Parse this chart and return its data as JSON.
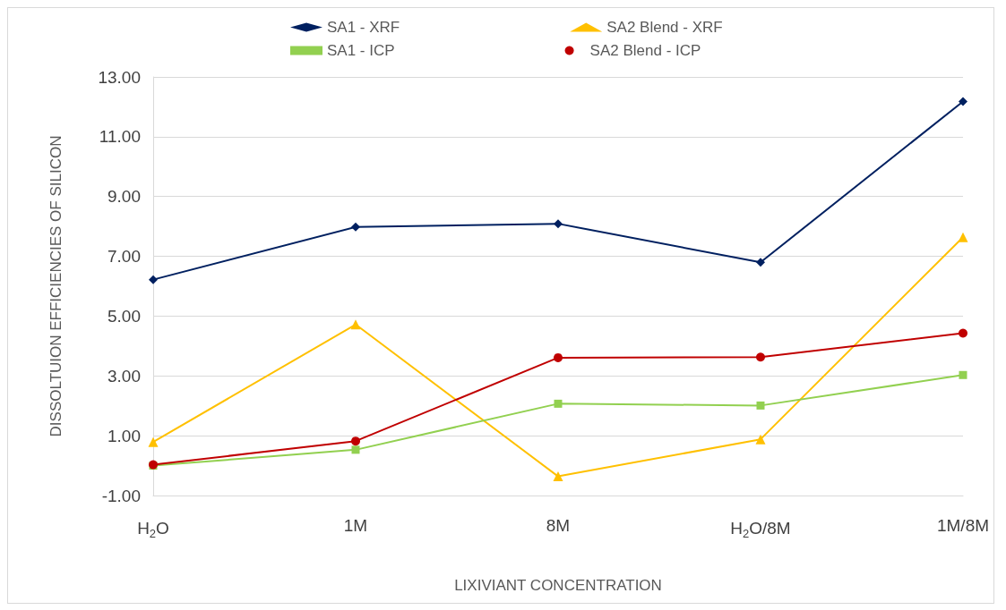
{
  "chart_data": {
    "type": "line",
    "xlabel": "LIXIVIANT CONCENTRATION",
    "ylabel": "DISSOLTUION EFFICIENCIES OF SILICON",
    "categories": [
      "H$_{2}$O",
      "1M",
      "8M",
      "H$_{2}$O/8M",
      "1M/8M"
    ],
    "series": [
      {
        "name": "SA1 - XRF",
        "color": "#002060",
        "marker": "diamond",
        "values": [
          6.22,
          7.98,
          8.09,
          6.8,
          12.18
        ]
      },
      {
        "name": "SA2 Blend - XRF",
        "color": "#ffc000",
        "marker": "triangle",
        "values": [
          0.79,
          4.72,
          -0.36,
          0.88,
          7.64
        ]
      },
      {
        "name": "SA1 - ICP",
        "color": "#92d050",
        "marker": "square",
        "values": [
          0.0,
          0.53,
          2.07,
          2.01,
          3.03
        ]
      },
      {
        "name": "SA2 Blend - ICP",
        "color": "#c00000",
        "marker": "circle",
        "values": [
          0.03,
          0.82,
          3.61,
          3.63,
          4.43
        ]
      }
    ],
    "ylim": [
      -1,
      13
    ],
    "yticks": [
      {
        "value": -1,
        "label": "-1.00"
      },
      {
        "value": 1,
        "label": "1.00"
      },
      {
        "value": 3,
        "label": "3.00"
      },
      {
        "value": 5,
        "label": "5.00"
      },
      {
        "value": 7,
        "label": "7.00"
      },
      {
        "value": 9,
        "label": "9.00"
      },
      {
        "value": 11,
        "label": "11.00"
      },
      {
        "value": 13,
        "label": "13.00"
      }
    ],
    "grid": "y",
    "legend": "top",
    "line_style": "solid"
  }
}
